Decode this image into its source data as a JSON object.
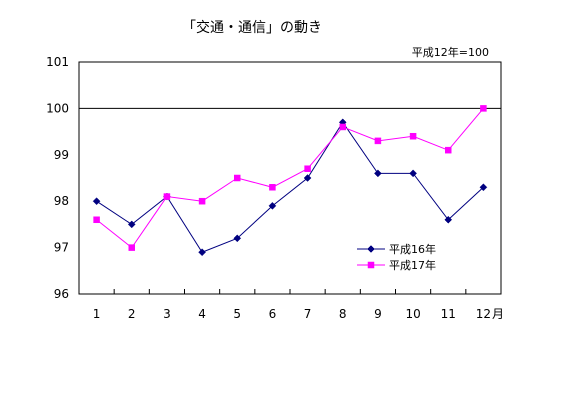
{
  "chart_data": {
    "type": "line",
    "title": "「交通・通信」の動き",
    "base_note": "平成12年=100",
    "x_unit_label": "月",
    "categories": [
      "1",
      "2",
      "3",
      "4",
      "5",
      "6",
      "7",
      "8",
      "9",
      "10",
      "11",
      "12"
    ],
    "ylim": [
      96,
      101
    ],
    "yticks": [
      "96",
      "97",
      "98",
      "99",
      "100",
      "101"
    ],
    "reference_line": 100,
    "grid": false,
    "legend_position": "lower-right",
    "series": [
      {
        "name": "平成16年",
        "color": "#000080",
        "marker": "diamond",
        "values": [
          98.0,
          97.5,
          98.1,
          96.9,
          97.2,
          97.9,
          98.5,
          99.7,
          98.6,
          98.6,
          97.6,
          98.3
        ]
      },
      {
        "name": "平成17年",
        "color": "#ff00ff",
        "marker": "square",
        "values": [
          97.6,
          97.0,
          98.1,
          98.0,
          98.5,
          98.3,
          98.7,
          99.6,
          99.3,
          99.4,
          99.1,
          100.0
        ]
      }
    ]
  }
}
